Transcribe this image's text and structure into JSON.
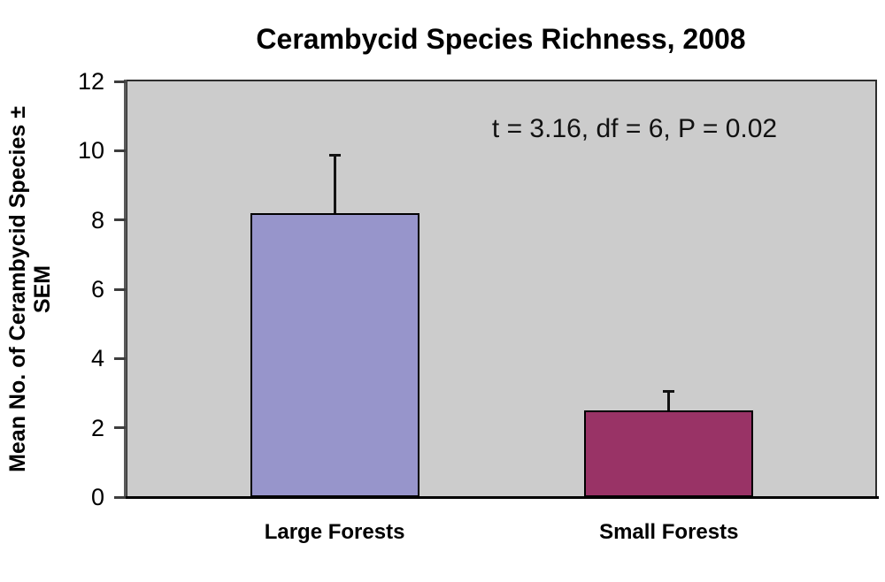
{
  "figure": {
    "title": "Cerambycid Species Richness, 2008",
    "annotation": "t = 3.16, df = 6, P = 0.02",
    "y_axis_label_line1": "Mean No. of Cerambycid Species ±",
    "y_axis_label_line2": "SEM"
  },
  "chart_data": {
    "type": "bar",
    "title": "Cerambycid Species Richness, 2008",
    "categories": [
      "Large Forests",
      "Small Forests"
    ],
    "values": [
      8.2,
      2.5
    ],
    "error_sem": [
      1.7,
      0.6
    ],
    "annotation": "t = 3.16, df = 6, P = 0.02",
    "xlabel": "",
    "ylabel": "Mean No. of Cerambycid Species ± SEM",
    "ylim": [
      0,
      12
    ],
    "yticks": [
      0,
      2,
      4,
      6,
      8,
      10,
      12
    ],
    "grid": false,
    "legend": false,
    "plot_bg_color": "#CCCCCC",
    "bar_colors": [
      "#9795CB",
      "#993366"
    ],
    "bar_border_color": "#000000"
  }
}
